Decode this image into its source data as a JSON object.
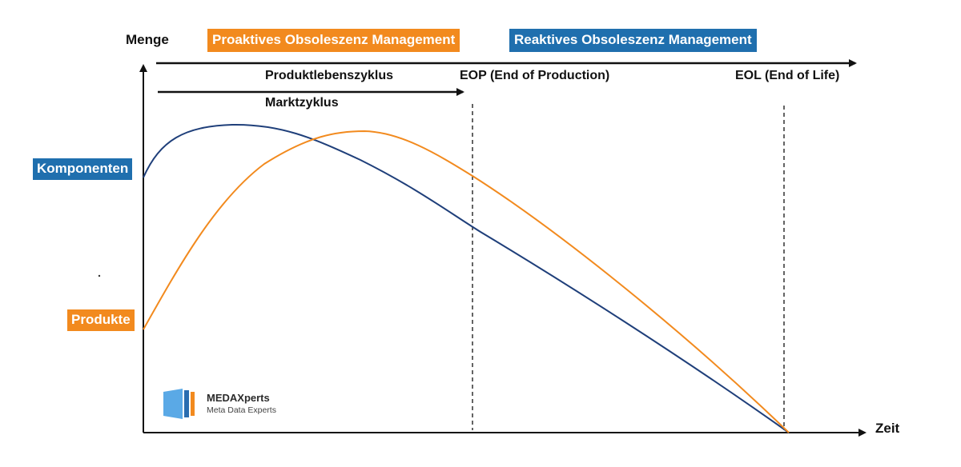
{
  "axes": {
    "y_label": "Menge",
    "x_label": "Zeit"
  },
  "banners": {
    "proactive": "Proaktives Obsoleszenz Management",
    "reactive": "Reaktives Obsoleszenz Management"
  },
  "cycles": {
    "product_lifecycle": "Produktlebenszyklus",
    "market_cycle": "Marktzyklus"
  },
  "milestones": {
    "eop": "EOP (End of Production)",
    "eol": "EOL (End of Life)"
  },
  "series_labels": {
    "components": "Komponenten",
    "products": "Produkte"
  },
  "logo": {
    "name": "MEDAXperts",
    "tagline": "Meta Data Experts"
  },
  "colors": {
    "orange": "#F28A1E",
    "blue": "#1F6FAE",
    "navy_curve": "#1F3F7A",
    "logo_light": "#5AA9E6",
    "logo_dark": "#2A6DB0"
  }
}
